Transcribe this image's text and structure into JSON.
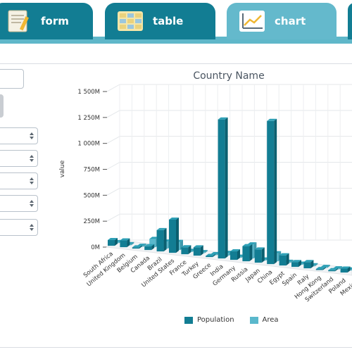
{
  "tabs": [
    {
      "label": "form",
      "icon": "form-icon"
    },
    {
      "label": "table",
      "icon": "table-icon"
    },
    {
      "label": "chart",
      "icon": "chart-icon",
      "active": true
    }
  ],
  "colors": {
    "tab": "#127d93",
    "tab_active": "#64b9cc",
    "population": "#127d93",
    "area": "#5ab8cc"
  },
  "chart_data": {
    "type": "bar",
    "title": "Country Name",
    "ylabel": "value",
    "xlabel": "",
    "ylim": [
      0,
      1500
    ],
    "yticks": [
      "0M",
      "250M",
      "500M",
      "750M",
      "1 000M",
      "1 250M",
      "1 500M"
    ],
    "categories": [
      "South Africa",
      "United Kingdom",
      "Belgium",
      "Canada",
      "Brazil",
      "United States",
      "France",
      "Turkey",
      "Greece",
      "India",
      "Germany",
      "Russia",
      "Japan",
      "China",
      "Egypt",
      "Spain",
      "Italy",
      "Hong Kong",
      "Switzerland",
      "Poland",
      "Mexico"
    ],
    "series": [
      {
        "name": "Population",
        "values": [
          55,
          65,
          12,
          36,
          205,
          320,
          67,
          80,
          11,
          1340,
          82,
          146,
          127,
          1380,
          98,
          47,
          60,
          7,
          9,
          38,
          129
        ]
      },
      {
        "name": "Area",
        "values": [
          1,
          0.2,
          0,
          10,
          8.5,
          9.8,
          0.6,
          0.8,
          0.1,
          3.3,
          0.4,
          17,
          0.4,
          9.6,
          1,
          0.5,
          0.3,
          0,
          0,
          0.3,
          2
        ]
      }
    ],
    "legend": "bottom-center"
  }
}
